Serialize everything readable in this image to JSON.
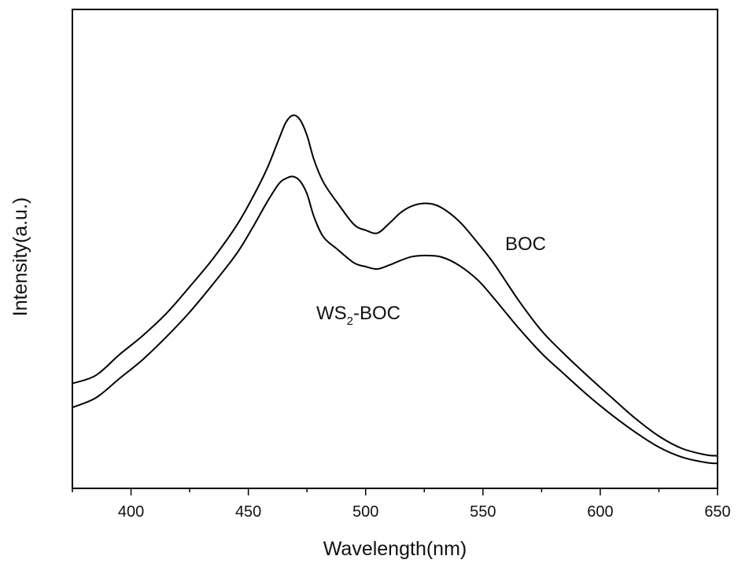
{
  "chart_data": {
    "type": "line",
    "xlabel": "Wavelength(nm)",
    "ylabel": "Intensity(a.u.)",
    "xlim": [
      375,
      650
    ],
    "ylim": [
      0,
      100
    ],
    "x_ticks": [
      400,
      450,
      500,
      550,
      600,
      650
    ],
    "x_tick_labels": [
      "400",
      "450",
      "500",
      "550",
      "600",
      "650"
    ],
    "grid": false,
    "legend": "none",
    "series": [
      {
        "name": "BOC",
        "label": "BOC",
        "color": "#000000",
        "points": [
          [
            375,
            21.9
          ],
          [
            385,
            23.6
          ],
          [
            395,
            27.9
          ],
          [
            405,
            31.9
          ],
          [
            415,
            36.5
          ],
          [
            425,
            42.1
          ],
          [
            435,
            48.0
          ],
          [
            445,
            54.9
          ],
          [
            452,
            60.9
          ],
          [
            458,
            66.8
          ],
          [
            463,
            72.9
          ],
          [
            466,
            76.4
          ],
          [
            469,
            77.9
          ],
          [
            472,
            77.0
          ],
          [
            475,
            73.7
          ],
          [
            478,
            68.6
          ],
          [
            482,
            63.9
          ],
          [
            488,
            59.6
          ],
          [
            495,
            55.1
          ],
          [
            500,
            53.9
          ],
          [
            505,
            53.3
          ],
          [
            510,
            55.3
          ],
          [
            515,
            57.6
          ],
          [
            520,
            59.0
          ],
          [
            526,
            59.5
          ],
          [
            532,
            58.7
          ],
          [
            540,
            55.7
          ],
          [
            548,
            51.1
          ],
          [
            555,
            46.7
          ],
          [
            565,
            39.4
          ],
          [
            575,
            32.9
          ],
          [
            585,
            27.9
          ],
          [
            595,
            23.3
          ],
          [
            605,
            18.9
          ],
          [
            615,
            14.6
          ],
          [
            625,
            10.9
          ],
          [
            635,
            8.3
          ],
          [
            645,
            7.0
          ],
          [
            650,
            6.8
          ]
        ]
      },
      {
        "name": "WS2-BOC",
        "label_main": "WS",
        "label_sub": "2",
        "label_tail": "-BOC",
        "color": "#000000",
        "points": [
          [
            375,
            16.9
          ],
          [
            385,
            18.9
          ],
          [
            395,
            22.9
          ],
          [
            405,
            26.9
          ],
          [
            415,
            31.6
          ],
          [
            425,
            36.8
          ],
          [
            435,
            42.7
          ],
          [
            445,
            49.0
          ],
          [
            452,
            54.6
          ],
          [
            458,
            59.8
          ],
          [
            463,
            63.6
          ],
          [
            466,
            64.7
          ],
          [
            469,
            65.1
          ],
          [
            472,
            64.2
          ],
          [
            475,
            61.5
          ],
          [
            478,
            56.7
          ],
          [
            482,
            52.5
          ],
          [
            488,
            49.9
          ],
          [
            495,
            47.1
          ],
          [
            500,
            46.3
          ],
          [
            505,
            45.8
          ],
          [
            510,
            46.6
          ],
          [
            515,
            47.6
          ],
          [
            520,
            48.4
          ],
          [
            527,
            48.6
          ],
          [
            533,
            48.2
          ],
          [
            540,
            46.5
          ],
          [
            548,
            43.4
          ],
          [
            555,
            39.5
          ],
          [
            565,
            33.6
          ],
          [
            575,
            28.2
          ],
          [
            585,
            23.7
          ],
          [
            595,
            19.3
          ],
          [
            605,
            15.3
          ],
          [
            615,
            11.7
          ],
          [
            625,
            8.6
          ],
          [
            635,
            6.5
          ],
          [
            645,
            5.4
          ],
          [
            650,
            5.2
          ]
        ]
      }
    ]
  }
}
